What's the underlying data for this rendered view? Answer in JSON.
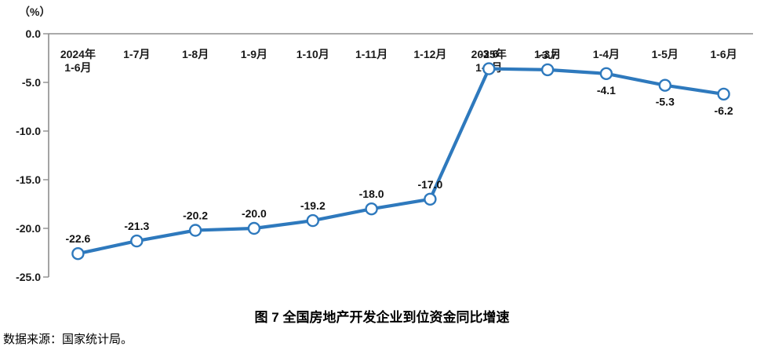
{
  "chart_data": {
    "type": "line",
    "title": "图 7 全国房地产开发企业到位资金同比增速",
    "unit": "（%）",
    "source": "数据来源：国家统计局。",
    "categories": [
      [
        "2024年",
        "1-6月"
      ],
      [
        "1-7月"
      ],
      [
        "1-8月"
      ],
      [
        "1-9月"
      ],
      [
        "1-10月"
      ],
      [
        "1-11月"
      ],
      [
        "1-12月"
      ],
      [
        "2025年",
        "1-2月"
      ],
      [
        "1-3月"
      ],
      [
        "1-4月"
      ],
      [
        "1-5月"
      ],
      [
        "1-6月"
      ]
    ],
    "values": [
      -22.6,
      -21.3,
      -20.2,
      -20.0,
      -19.2,
      -18.0,
      -17.0,
      -3.6,
      -3.7,
      -4.1,
      -5.3,
      -6.2
    ],
    "data_labels": [
      "-22.6",
      "-21.3",
      "-20.2",
      "-20.0",
      "-19.2",
      "-18.0",
      "-17.0",
      "-3.6",
      "-3.7",
      "-4.1",
      "-5.3",
      "-6.2"
    ],
    "label_positions": [
      "above",
      "above",
      "above",
      "above",
      "above",
      "above",
      "above",
      "above",
      "above",
      "below",
      "below",
      "below"
    ],
    "ytick_labels": [
      "0.0",
      "-5.0",
      "-10.0",
      "-15.0",
      "-20.0",
      "-25.0"
    ],
    "yticks": [
      0,
      -5,
      -10,
      -15,
      -20,
      -25
    ],
    "ylim": [
      -25,
      0
    ],
    "grid": false,
    "legend": "none",
    "xlabel": "",
    "ylabel": "",
    "colors": {
      "line": "#2E79BD",
      "marker_fill": "#FFFFFF",
      "axis": "#8E8E8E",
      "text": "#1A1A1A"
    }
  }
}
